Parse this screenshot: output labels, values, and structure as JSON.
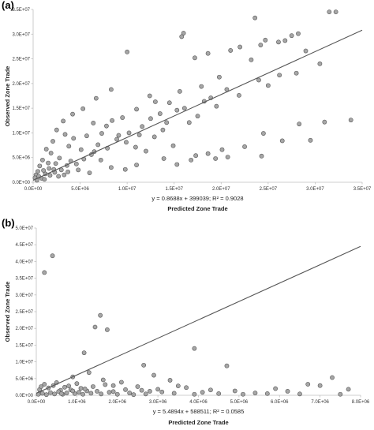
{
  "chart_data": [
    {
      "type": "scatter",
      "panel_label": "(a)",
      "xlabel": "Predicted Zone Trade",
      "ylabel": "Observed Zone Trade",
      "equation": "y = 0.8688x + 399039; R² = 0.9028",
      "xlim": [
        0,
        35000000
      ],
      "ylim": [
        0,
        35000000
      ],
      "x_ticks": [
        "0.0E+00",
        "5.0E+06",
        "1.0E+07",
        "1.5E+07",
        "2.0E+07",
        "2.5E+07",
        "3.0E+07",
        "3.5E+07"
      ],
      "y_ticks": [
        "0.0E+00",
        "5.0E+06",
        "1.0E+07",
        "1.5E+07",
        "2.0E+07",
        "2.5E+07",
        "3.0E+07",
        "3.5E+07"
      ],
      "trendline": {
        "slope": 0.8688,
        "intercept": 399039
      },
      "points": [
        [
          23600000,
          33300000
        ],
        [
          31500000,
          34500000
        ],
        [
          32200000,
          34500000
        ],
        [
          16000000,
          30200000
        ],
        [
          15800000,
          29500000
        ],
        [
          10000000,
          26400000
        ],
        [
          27500000,
          29700000
        ],
        [
          28200000,
          30100000
        ],
        [
          26800000,
          28700000
        ],
        [
          26100000,
          28400000
        ],
        [
          24700000,
          28800000
        ],
        [
          24200000,
          27800000
        ],
        [
          22000000,
          27400000
        ],
        [
          21000000,
          26700000
        ],
        [
          18600000,
          26100000
        ],
        [
          17200000,
          25200000
        ],
        [
          23200000,
          24800000
        ],
        [
          29000000,
          26600000
        ],
        [
          30500000,
          24000000
        ],
        [
          28000000,
          22100000
        ],
        [
          26200000,
          21700000
        ],
        [
          25000000,
          19600000
        ],
        [
          24000000,
          20700000
        ],
        [
          20600000,
          18800000
        ],
        [
          21900000,
          17600000
        ],
        [
          18200000,
          16400000
        ],
        [
          19500000,
          15400000
        ],
        [
          16100000,
          15000000
        ],
        [
          12400000,
          17500000
        ],
        [
          13000000,
          16300000
        ],
        [
          14500000,
          16100000
        ],
        [
          15300000,
          14600000
        ],
        [
          17500000,
          13400000
        ],
        [
          16600000,
          12100000
        ],
        [
          13800000,
          10600000
        ],
        [
          12900000,
          9200000
        ],
        [
          11600000,
          11300000
        ],
        [
          11000000,
          14800000
        ],
        [
          9500000,
          13100000
        ],
        [
          8400000,
          12500000
        ],
        [
          7800000,
          11400000
        ],
        [
          9100000,
          9500000
        ],
        [
          9900000,
          8100000
        ],
        [
          10900000,
          7100000
        ],
        [
          12000000,
          6300000
        ],
        [
          13900000,
          4800000
        ],
        [
          15300000,
          3600000
        ],
        [
          16800000,
          4500000
        ],
        [
          17300000,
          5400000
        ],
        [
          19400000,
          4800000
        ],
        [
          20100000,
          6600000
        ],
        [
          22500000,
          7200000
        ],
        [
          24500000,
          9900000
        ],
        [
          26500000,
          8400000
        ],
        [
          29500000,
          8500000
        ],
        [
          31000000,
          12200000
        ],
        [
          28300000,
          11800000
        ],
        [
          33800000,
          12600000
        ],
        [
          24300000,
          5300000
        ],
        [
          20700000,
          5100000
        ],
        [
          18600000,
          5800000
        ],
        [
          14900000,
          7400000
        ],
        [
          8300000,
          18800000
        ],
        [
          6700000,
          17000000
        ],
        [
          5300000,
          14900000
        ],
        [
          4200000,
          13800000
        ],
        [
          3200000,
          12400000
        ],
        [
          6400000,
          12000000
        ],
        [
          7300000,
          9900000
        ],
        [
          5700000,
          9400000
        ],
        [
          4300000,
          8900000
        ],
        [
          3400000,
          9700000
        ],
        [
          2500000,
          10600000
        ],
        [
          2100000,
          8300000
        ],
        [
          3800000,
          7300000
        ],
        [
          5100000,
          6600000
        ],
        [
          6500000,
          6200000
        ],
        [
          7200000,
          4500000
        ],
        [
          8300000,
          3000000
        ],
        [
          9800000,
          2600000
        ],
        [
          11000000,
          3500000
        ],
        [
          6000000,
          1900000
        ],
        [
          4800000,
          2500000
        ],
        [
          3600000,
          3400000
        ],
        [
          2800000,
          4900000
        ],
        [
          1900000,
          5900000
        ],
        [
          1400000,
          6700000
        ],
        [
          1000000,
          4500000
        ],
        [
          700000,
          3300000
        ],
        [
          500000,
          2200000
        ],
        [
          300000,
          1500000
        ],
        [
          200000,
          900000
        ],
        [
          400000,
          400000
        ],
        [
          900000,
          800000
        ],
        [
          1300000,
          1700000
        ],
        [
          1700000,
          2800000
        ],
        [
          2300000,
          2000000
        ],
        [
          2700000,
          1200000
        ],
        [
          3300000,
          1500000
        ],
        [
          4000000,
          4300000
        ],
        [
          1100000,
          2400000
        ],
        [
          1600000,
          3900000
        ],
        [
          2400000,
          3800000
        ],
        [
          600000,
          1200000
        ],
        [
          1200000,
          600000
        ],
        [
          1800000,
          1400000
        ],
        [
          2200000,
          2600000
        ],
        [
          3000000,
          2500000
        ],
        [
          3700000,
          2100000
        ],
        [
          4600000,
          3700000
        ],
        [
          5400000,
          4700000
        ],
        [
          6200000,
          5600000
        ],
        [
          6900000,
          7600000
        ],
        [
          7900000,
          6900000
        ],
        [
          8900000,
          8700000
        ],
        [
          10200000,
          10000000
        ],
        [
          11300000,
          9600000
        ],
        [
          12500000,
          12900000
        ],
        [
          13500000,
          13900000
        ],
        [
          14200000,
          12100000
        ],
        [
          15600000,
          18400000
        ],
        [
          17900000,
          19400000
        ],
        [
          19800000,
          21300000
        ],
        [
          18900000,
          17100000
        ]
      ]
    },
    {
      "type": "scatter",
      "panel_label": "(b)",
      "xlabel": "Predicted Zone Trade",
      "ylabel": "Observed Zone Trade",
      "equation": "y = 5.4894x + 588511; R² = 0.0585",
      "xlim": [
        0,
        8000000
      ],
      "ylim": [
        0,
        50000000
      ],
      "x_ticks": [
        "0.0E+00",
        "1.0E+06",
        "2.0E+06",
        "3.0E+06",
        "4.0E+06",
        "5.0E+06",
        "6.0E+06",
        "7.0E+06",
        "8.0E+06"
      ],
      "y_ticks": [
        "0.0E+00",
        "5.0E+06",
        "1.0E+07",
        "1.5E+07",
        "2.0E+07",
        "2.5E+07",
        "3.0E+07",
        "3.5E+07",
        "4.0E+07",
        "4.5E+07",
        "5.0E+07"
      ],
      "trendline": {
        "slope": 5.4894,
        "intercept": 588511
      },
      "points": [
        [
          400000,
          41700000
        ],
        [
          200000,
          36700000
        ],
        [
          1580000,
          23900000
        ],
        [
          1450000,
          20400000
        ],
        [
          1750000,
          19600000
        ],
        [
          1180000,
          12700000
        ],
        [
          3900000,
          14000000
        ],
        [
          2650000,
          9000000
        ],
        [
          2900000,
          6000000
        ],
        [
          4700000,
          8800000
        ],
        [
          7300000,
          5300000
        ],
        [
          6700000,
          3300000
        ],
        [
          1300000,
          6800000
        ],
        [
          900000,
          5500000
        ],
        [
          1650000,
          4600000
        ],
        [
          3300000,
          4500000
        ],
        [
          5900000,
          2000000
        ],
        [
          7000000,
          2900000
        ],
        [
          7700000,
          1800000
        ],
        [
          6200000,
          1200000
        ],
        [
          5400000,
          700000
        ],
        [
          4900000,
          1300000
        ],
        [
          4300000,
          1600000
        ],
        [
          3700000,
          2300000
        ],
        [
          3100000,
          1000000
        ],
        [
          2500000,
          2600000
        ],
        [
          2200000,
          1700000
        ],
        [
          1900000,
          2900000
        ],
        [
          1500000,
          1200000
        ],
        [
          1100000,
          2100000
        ],
        [
          800000,
          2800000
        ],
        [
          600000,
          1500000
        ],
        [
          300000,
          2200000
        ],
        [
          100000,
          1000000
        ],
        [
          50000,
          300000
        ],
        [
          150000,
          600000
        ],
        [
          250000,
          200000
        ],
        [
          350000,
          800000
        ],
        [
          450000,
          400000
        ],
        [
          550000,
          1100000
        ],
        [
          650000,
          300000
        ],
        [
          750000,
          700000
        ],
        [
          850000,
          1600000
        ],
        [
          950000,
          500000
        ],
        [
          1050000,
          900000
        ],
        [
          1150000,
          300000
        ],
        [
          1250000,
          1300000
        ],
        [
          1350000,
          600000
        ],
        [
          1600000,
          400000
        ],
        [
          1800000,
          900000
        ],
        [
          2000000,
          300000
        ],
        [
          2300000,
          700000
        ],
        [
          2700000,
          400000
        ],
        [
          3000000,
          1800000
        ],
        [
          3400000,
          600000
        ],
        [
          3900000,
          300000
        ],
        [
          4500000,
          500000
        ],
        [
          5100000,
          300000
        ],
        [
          5700000,
          500000
        ],
        [
          6500000,
          400000
        ],
        [
          7500000,
          300000
        ],
        [
          200000,
          3300000
        ],
        [
          500000,
          3800000
        ],
        [
          700000,
          2400000
        ],
        [
          1000000,
          3500000
        ],
        [
          1400000,
          2600000
        ],
        [
          1700000,
          3200000
        ],
        [
          2100000,
          3900000
        ],
        [
          2600000,
          1500000
        ],
        [
          3500000,
          2800000
        ],
        [
          4100000,
          900000
        ],
        [
          80000,
          1700000
        ],
        [
          120000,
          2600000
        ],
        [
          420000,
          2900000
        ],
        [
          620000,
          500000
        ],
        [
          900000,
          1300000
        ],
        [
          1200000,
          1900000
        ],
        [
          1900000,
          1100000
        ],
        [
          2400000,
          200000
        ],
        [
          2800000,
          1200000
        ]
      ]
    }
  ]
}
